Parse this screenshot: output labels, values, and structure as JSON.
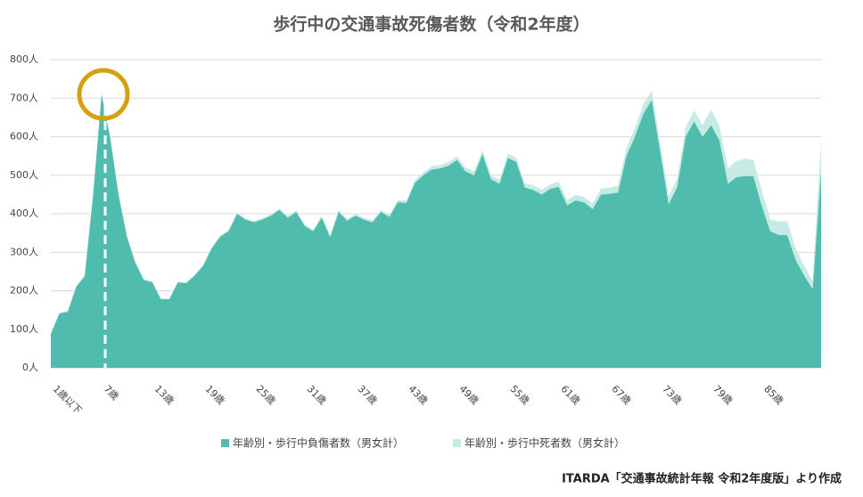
{
  "chart_data": {
    "type": "stacked-area",
    "title": "歩行中の交通事故死傷者数（令和2年度）",
    "source": "ITARDA「交通事故統計年報 令和2年度版」より作成",
    "categories": [
      "1歳以下",
      null,
      null,
      null,
      null,
      null,
      "7歳",
      null,
      null,
      null,
      null,
      null,
      "13歳",
      null,
      null,
      null,
      null,
      null,
      "19歳",
      null,
      null,
      null,
      null,
      null,
      "25歳",
      null,
      null,
      null,
      null,
      null,
      "31歳",
      null,
      null,
      null,
      null,
      null,
      "37歳",
      null,
      null,
      null,
      null,
      null,
      "43歳",
      null,
      null,
      null,
      null,
      null,
      "49歳",
      null,
      null,
      null,
      null,
      null,
      "55歳",
      null,
      null,
      null,
      null,
      null,
      "61歳",
      null,
      null,
      null,
      null,
      null,
      "67歳",
      null,
      null,
      null,
      null,
      null,
      "73歳",
      null,
      null,
      null,
      null,
      null,
      "79歳",
      null,
      null,
      null,
      null,
      null,
      "85歳",
      null,
      null,
      null,
      null,
      null,
      null,
      null
    ],
    "series": [
      {
        "name": "年齢別・歩行中負傷者数（男女計）",
        "color": "#4fbcae",
        "values": [
          88,
          141,
          146,
          210,
          238,
          450,
          710,
          600,
          450,
          340,
          272,
          228,
          222,
          178,
          178,
          222,
          220,
          240,
          265,
          310,
          340,
          355,
          400,
          385,
          378,
          385,
          395,
          410,
          390,
          405,
          368,
          355,
          390,
          340,
          405,
          382,
          395,
          385,
          378,
          405,
          392,
          430,
          428,
          480,
          500,
          515,
          518,
          525,
          540,
          510,
          500,
          555,
          490,
          478,
          545,
          535,
          468,
          462,
          450,
          465,
          470,
          422,
          435,
          430,
          412,
          450,
          452,
          455,
          550,
          600,
          660,
          695,
          560,
          425,
          470,
          600,
          640,
          600,
          630,
          590,
          478,
          495,
          498,
          498,
          420,
          355,
          345,
          345,
          280,
          240,
          205,
          510
        ]
      },
      {
        "name": "年齢別・歩行中死者数（男女計）",
        "color": "#c5ebe4",
        "values": [
          2,
          2,
          2,
          3,
          3,
          4,
          5,
          4,
          3,
          3,
          2,
          2,
          2,
          2,
          2,
          2,
          2,
          2,
          3,
          3,
          3,
          3,
          3,
          3,
          3,
          4,
          4,
          4,
          4,
          4,
          4,
          4,
          4,
          4,
          5,
          5,
          5,
          5,
          5,
          5,
          6,
          6,
          6,
          7,
          7,
          8,
          8,
          9,
          9,
          10,
          10,
          10,
          10,
          10,
          11,
          11,
          11,
          12,
          12,
          12,
          13,
          13,
          14,
          14,
          15,
          15,
          16,
          18,
          20,
          22,
          24,
          25,
          22,
          20,
          22,
          25,
          28,
          30,
          40,
          38,
          40,
          42,
          45,
          42,
          40,
          30,
          35,
          35,
          30,
          25,
          20,
          80
        ]
      }
    ],
    "ylim": [
      0,
      800
    ],
    "yticks": [
      {
        "value": 0,
        "label": "0人"
      },
      {
        "value": 100,
        "label": "100人"
      },
      {
        "value": 200,
        "label": "200人"
      },
      {
        "value": 300,
        "label": "300人"
      },
      {
        "value": 400,
        "label": "400人"
      },
      {
        "value": 500,
        "label": "500人"
      },
      {
        "value": 600,
        "label": "600人"
      },
      {
        "value": 700,
        "label": "700人"
      },
      {
        "value": 800,
        "label": "800人"
      }
    ],
    "grid": true
  }
}
